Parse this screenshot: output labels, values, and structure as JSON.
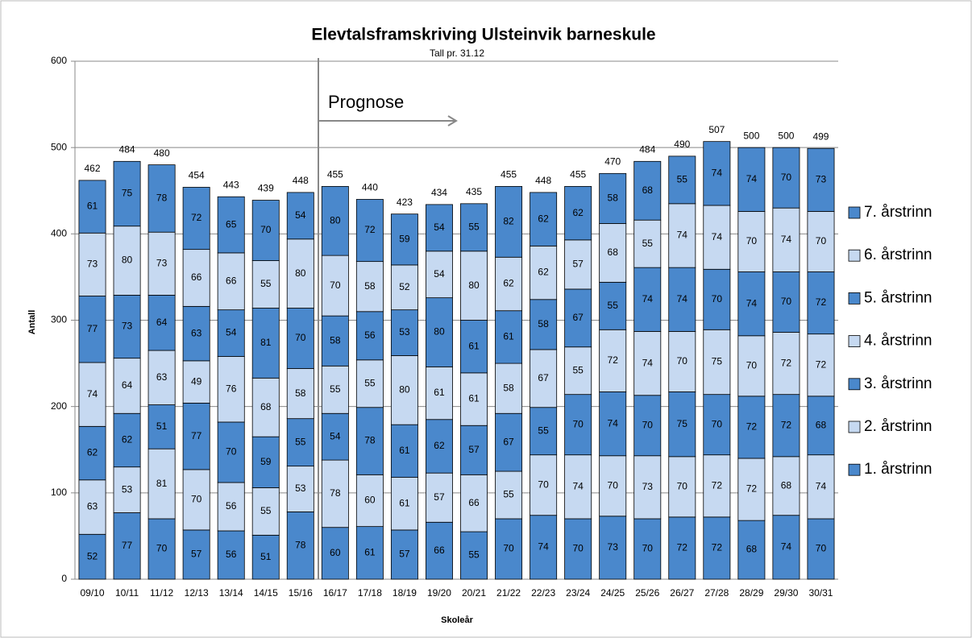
{
  "chart_data": {
    "type": "stacked_bar",
    "title": "Elevtalsframskriving Ulsteinvik barneskule",
    "subtitle": "Tall pr. 31.12",
    "annotation": "Prognose",
    "y_label": "Antall",
    "x_label": "Skoleår",
    "categories": [
      "09/10",
      "10/11",
      "11/12",
      "12/13",
      "13/14",
      "14/15",
      "15/16",
      "16/17",
      "17/18",
      "18/19",
      "19/20",
      "20/21",
      "21/22",
      "22/23",
      "23/24",
      "24/25",
      "25/26",
      "26/27",
      "27/28",
      "28/29",
      "29/30",
      "30/31"
    ],
    "series": [
      {
        "name": "1. årstrinn",
        "color": "#4a88cc",
        "values": [
          52,
          77,
          70,
          57,
          56,
          51,
          78,
          60,
          61,
          57,
          66,
          55,
          70,
          74,
          70,
          73,
          70,
          72,
          72,
          68,
          74,
          70
        ]
      },
      {
        "name": "2. årstrinn",
        "color": "#c6d9f1",
        "values": [
          63,
          53,
          81,
          70,
          56,
          55,
          53,
          78,
          60,
          61,
          57,
          66,
          55,
          70,
          74,
          70,
          73,
          70,
          72,
          72,
          68,
          74
        ]
      },
      {
        "name": "3. årstrinn",
        "color": "#4a88cc",
        "values": [
          62,
          62,
          51,
          77,
          70,
          59,
          55,
          54,
          78,
          61,
          62,
          57,
          67,
          55,
          70,
          74,
          70,
          75,
          70,
          72,
          72,
          68
        ]
      },
      {
        "name": "4. årstrinn",
        "color": "#c6d9f1",
        "values": [
          74,
          64,
          63,
          49,
          76,
          68,
          58,
          55,
          55,
          80,
          61,
          61,
          58,
          67,
          55,
          72,
          74,
          70,
          75,
          70,
          72,
          72
        ]
      },
      {
        "name": "5. årstrinn",
        "color": "#4a88cc",
        "values": [
          77,
          73,
          64,
          63,
          54,
          81,
          70,
          58,
          56,
          53,
          80,
          61,
          61,
          58,
          67,
          55,
          74,
          74,
          70,
          74,
          70,
          72
        ]
      },
      {
        "name": "6. årstrinn",
        "color": "#c6d9f1",
        "values": [
          73,
          80,
          73,
          66,
          66,
          55,
          80,
          70,
          58,
          52,
          54,
          80,
          62,
          62,
          57,
          68,
          55,
          74,
          74,
          70,
          74,
          70
        ]
      },
      {
        "name": "7. årstrinn",
        "color": "#4a88cc",
        "values": [
          61,
          75,
          78,
          72,
          65,
          70,
          54,
          80,
          72,
          59,
          54,
          55,
          82,
          62,
          62,
          58,
          68,
          55,
          74,
          74,
          70,
          73
        ]
      }
    ],
    "totals": [
      462,
      484,
      480,
      454,
      443,
      439,
      448,
      455,
      440,
      423,
      434,
      435,
      455,
      448,
      455,
      470,
      484,
      490,
      507,
      500,
      500,
      499
    ],
    "ylim": [
      0,
      600
    ],
    "yticks": [
      0,
      100,
      200,
      300,
      400,
      500,
      600
    ],
    "grid": true
  }
}
